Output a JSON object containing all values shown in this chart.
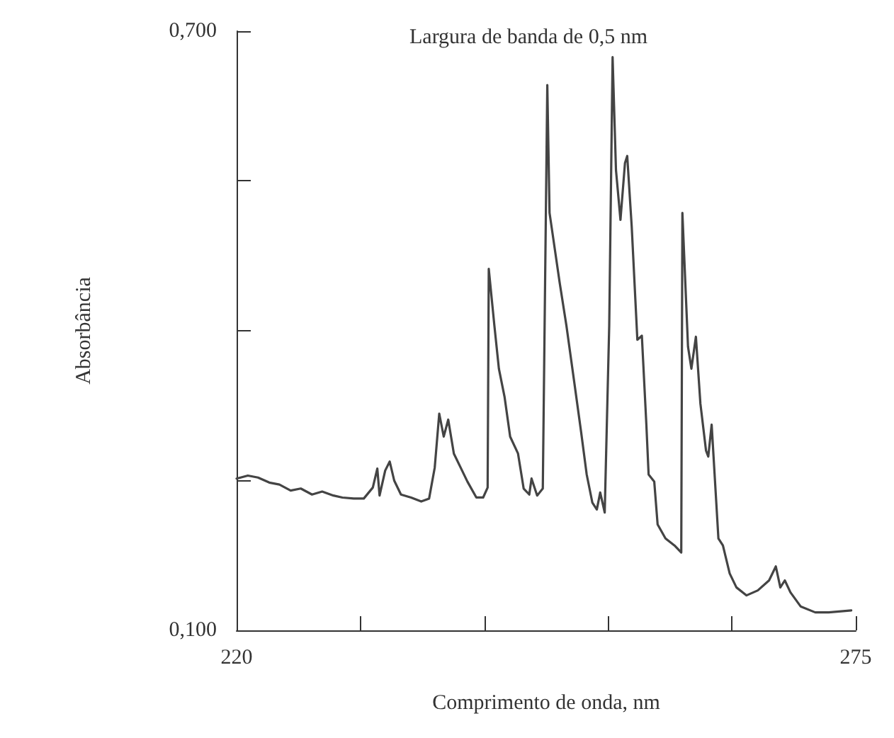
{
  "chart_data": {
    "type": "line",
    "title": "Largura de banda de 0,5 nm",
    "xlabel": "Comprimento de onda, nm",
    "ylabel": "Absorbância",
    "xlim": [
      220,
      275
    ],
    "xticks": [
      220,
      {
        "value": 231,
        "label": null
      },
      {
        "value": 242,
        "label": null
      },
      {
        "value": 253,
        "label": null
      },
      {
        "value": 264,
        "label": null
      },
      275
    ],
    "ylim": [
      0.1,
      0.7
    ],
    "yticks": [
      {
        "value": 0.1,
        "label": "0,100"
      },
      {
        "value": 0.25,
        "label": null
      },
      {
        "value": 0.4,
        "label": null
      },
      {
        "value": 0.55,
        "label": null
      },
      {
        "value": 0.7,
        "label": "0,700"
      }
    ],
    "grid": false,
    "marker": "none",
    "line_style": "solid",
    "series": [
      {
        "color": "#444444",
        "x": [
          220.0,
          221.0,
          221.9,
          222.9,
          223.8,
          224.8,
          225.7,
          226.7,
          227.6,
          228.6,
          229.4,
          230.4,
          231.3,
          232.1,
          232.5,
          232.7,
          233.2,
          233.6,
          234.0,
          234.6,
          235.5,
          236.4,
          237.1,
          237.6,
          238.0,
          238.4,
          238.8,
          239.3,
          239.9,
          240.5,
          241.3,
          241.9,
          242.3,
          242.4,
          242.9,
          243.3,
          243.8,
          244.3,
          245.0,
          245.5,
          246.0,
          246.2,
          246.7,
          247.2,
          247.6,
          247.8,
          248.7,
          249.3,
          250.0,
          250.6,
          251.1,
          251.6,
          252.0,
          252.3,
          252.7,
          253.1,
          253.4,
          253.7,
          254.1,
          254.5,
          254.7,
          255.1,
          255.6,
          256.0,
          256.4,
          256.6,
          257.1,
          257.4,
          258.1,
          258.9,
          259.5,
          259.6,
          260.1,
          260.4,
          260.8,
          261.2,
          261.7,
          261.9,
          262.2,
          262.8,
          263.2,
          263.8,
          264.4,
          265.3,
          266.3,
          267.3,
          267.9,
          268.3,
          268.7,
          269.2,
          270.1,
          271.4,
          272.6,
          274.6
        ],
        "values": [
          0.252,
          0.255,
          0.253,
          0.248,
          0.246,
          0.24,
          0.242,
          0.236,
          0.239,
          0.235,
          0.233,
          0.232,
          0.232,
          0.243,
          0.262,
          0.235,
          0.26,
          0.269,
          0.25,
          0.236,
          0.233,
          0.229,
          0.232,
          0.263,
          0.317,
          0.294,
          0.311,
          0.277,
          0.263,
          0.249,
          0.233,
          0.233,
          0.243,
          0.462,
          0.405,
          0.362,
          0.334,
          0.294,
          0.277,
          0.242,
          0.236,
          0.252,
          0.235,
          0.242,
          0.646,
          0.518,
          0.448,
          0.405,
          0.348,
          0.299,
          0.256,
          0.228,
          0.221,
          0.238,
          0.218,
          0.405,
          0.674,
          0.561,
          0.511,
          0.568,
          0.575,
          0.504,
          0.391,
          0.395,
          0.306,
          0.256,
          0.249,
          0.206,
          0.192,
          0.185,
          0.178,
          0.518,
          0.384,
          0.362,
          0.394,
          0.327,
          0.28,
          0.274,
          0.306,
          0.192,
          0.185,
          0.157,
          0.143,
          0.135,
          0.14,
          0.15,
          0.164,
          0.143,
          0.15,
          0.138,
          0.124,
          0.118,
          0.118,
          0.12
        ]
      }
    ]
  }
}
